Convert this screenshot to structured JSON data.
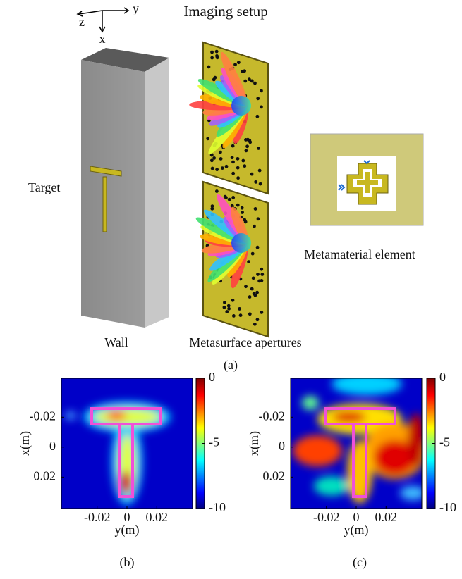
{
  "diagram": {
    "title": "Imaging setup",
    "axis_z": "z",
    "axis_y": "y",
    "axis_x": "x",
    "target": "Target",
    "wall": "Wall",
    "apertures": "Metasurface apertures",
    "element": "Metamaterial element",
    "caption": "(a)"
  },
  "chart_data": [
    {
      "type": "heatmap",
      "caption": "(b)",
      "xlabel": "y(m)",
      "ylabel": "x(m)",
      "xlim": [
        -0.044,
        0.044
      ],
      "ylim": [
        -0.046,
        0.041
      ],
      "xticks": [
        -0.02,
        0,
        0.02
      ],
      "yticks": [
        -0.02,
        0,
        0.02
      ],
      "clim": [
        -10,
        0
      ],
      "cticks": [
        0,
        -5,
        -10
      ],
      "colormap": "jet"
    },
    {
      "type": "heatmap",
      "caption": "(c)",
      "xlabel": "y(m)",
      "ylabel": "x(m)",
      "xlim": [
        -0.044,
        0.044
      ],
      "ylim": [
        -0.046,
        0.041
      ],
      "xticks": [
        -0.02,
        0,
        0.02
      ],
      "yticks": [
        -0.02,
        0,
        0.02
      ],
      "clim": [
        -10,
        0
      ],
      "cticks": [
        0,
        -5,
        -10
      ],
      "colormap": "jet"
    }
  ]
}
